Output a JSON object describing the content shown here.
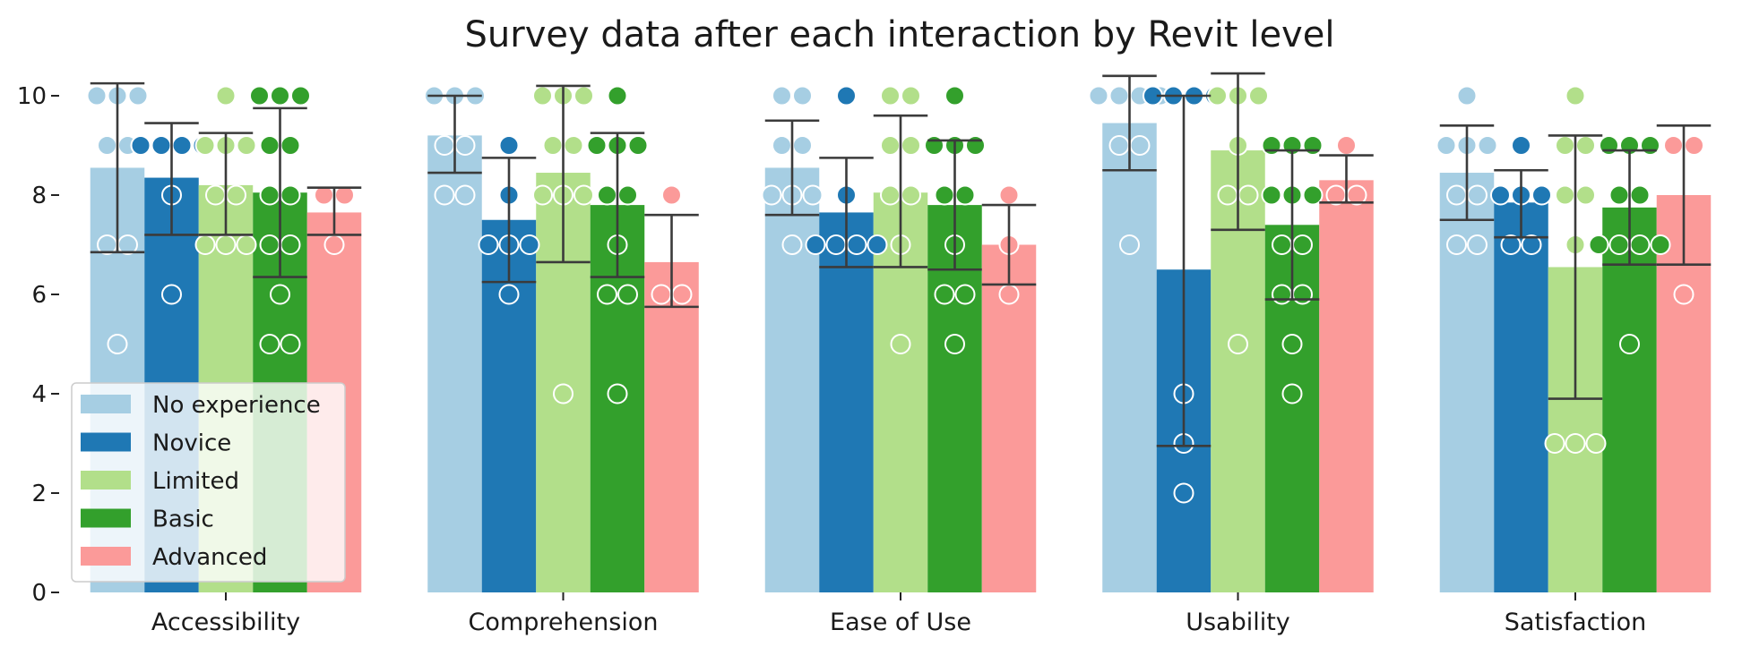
{
  "chart_data": {
    "type": "bar",
    "title": "Survey data after each interaction by Revit level",
    "xlabel": "",
    "ylabel": "",
    "ylim": [
      0,
      10.5
    ],
    "yticks": [
      0,
      2,
      4,
      6,
      8,
      10
    ],
    "grid": false,
    "legend_position": "lower-left",
    "categories": [
      "Accessibility",
      "Comprehension",
      "Ease of Use",
      "Usability",
      "Satisfaction"
    ],
    "series": [
      {
        "name": "No experience",
        "color": "#a6cee3",
        "values": [
          8.55,
          9.2,
          8.55,
          9.45,
          8.45
        ],
        "error_low": [
          6.85,
          8.45,
          7.6,
          8.5,
          7.5
        ],
        "error_high": [
          10.25,
          10.0,
          9.5,
          10.4,
          9.4
        ],
        "points": [
          [
            10,
            10,
            10,
            9,
            9,
            7,
            7,
            5
          ],
          [
            10,
            10,
            10,
            9,
            9,
            8,
            8
          ],
          [
            10,
            10,
            9,
            9,
            8,
            8,
            8,
            7
          ],
          [
            10,
            10,
            10,
            10,
            9,
            9,
            7
          ],
          [
            10,
            9,
            9,
            9,
            8,
            8,
            7,
            7
          ]
        ]
      },
      {
        "name": "Novice",
        "color": "#1f78b4",
        "values": [
          8.35,
          7.5,
          7.65,
          6.5,
          7.85
        ],
        "error_low": [
          7.2,
          6.25,
          6.55,
          2.95,
          7.15
        ],
        "error_high": [
          9.45,
          8.75,
          8.75,
          10.0,
          8.5
        ],
        "points": [
          [
            9,
            9,
            9,
            9,
            8,
            6
          ],
          [
            9,
            8,
            7,
            7,
            7,
            6
          ],
          [
            10,
            8,
            7,
            7,
            7,
            7
          ],
          [
            10,
            10,
            10,
            10,
            4,
            3,
            2
          ],
          [
            9,
            8,
            8,
            8,
            7,
            7
          ]
        ]
      },
      {
        "name": "Limited",
        "color": "#b2df8a",
        "values": [
          8.2,
          8.45,
          8.05,
          8.9,
          6.55
        ],
        "error_low": [
          7.2,
          6.65,
          6.55,
          7.3,
          3.9
        ],
        "error_high": [
          9.25,
          10.2,
          9.6,
          10.45,
          9.2
        ],
        "points": [
          [
            10,
            9,
            9,
            9,
            8,
            8,
            7,
            7,
            7
          ],
          [
            10,
            10,
            10,
            9,
            9,
            8,
            8,
            8,
            4
          ],
          [
            10,
            10,
            9,
            9,
            8,
            8,
            7,
            5
          ],
          [
            10,
            10,
            10,
            9,
            8,
            8,
            5
          ],
          [
            10,
            9,
            9,
            8,
            8,
            7,
            3,
            3,
            3
          ]
        ]
      },
      {
        "name": "Basic",
        "color": "#33a02c",
        "values": [
          8.05,
          7.8,
          7.8,
          7.4,
          7.75
        ],
        "error_low": [
          6.35,
          6.35,
          6.5,
          5.9,
          6.6
        ],
        "error_high": [
          9.75,
          9.25,
          9.1,
          8.9,
          8.9
        ],
        "points": [
          [
            10,
            10,
            10,
            9,
            9,
            8,
            8,
            7,
            7,
            6,
            5,
            5
          ],
          [
            10,
            9,
            9,
            9,
            8,
            8,
            7,
            6,
            6,
            4
          ],
          [
            10,
            9,
            9,
            9,
            8,
            8,
            7,
            6,
            6,
            5
          ],
          [
            9,
            9,
            9,
            8,
            8,
            8,
            7,
            7,
            6,
            6,
            5,
            4
          ],
          [
            9,
            9,
            9,
            8,
            8,
            7,
            7,
            7,
            7,
            5
          ]
        ]
      },
      {
        "name": "Advanced",
        "color": "#fb9a99",
        "values": [
          7.65,
          6.65,
          7.0,
          8.3,
          8.0
        ],
        "error_low": [
          7.2,
          5.75,
          6.2,
          7.85,
          6.6
        ],
        "error_high": [
          8.15,
          7.6,
          7.8,
          8.8,
          9.4
        ],
        "points": [
          [
            8,
            8,
            7
          ],
          [
            8,
            6,
            6
          ],
          [
            8,
            7,
            6
          ],
          [
            9,
            8,
            8
          ],
          [
            9,
            9,
            6
          ]
        ]
      }
    ]
  }
}
